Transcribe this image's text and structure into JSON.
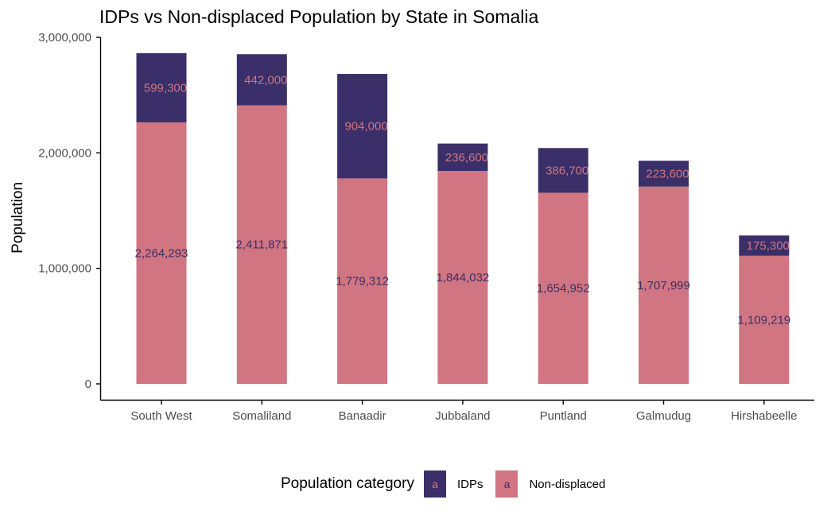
{
  "colors": {
    "idp": "#3a2f68",
    "nondisplaced": "#d07581",
    "axis": "#000000",
    "tick_text": "#4d4d4d"
  },
  "chart_data": {
    "type": "bar",
    "stacked": true,
    "title": "IDPs vs Non-displaced Population by State in Somalia",
    "xlabel": "",
    "ylabel": "Population",
    "ylim": [
      0,
      3000000
    ],
    "yticks": [
      0,
      1000000,
      2000000,
      3000000
    ],
    "ytick_labels": [
      "0",
      "1,000,000",
      "2,000,000",
      "3,000,000"
    ],
    "categories": [
      "South West",
      "Somaliland",
      "Banaadir",
      "Jubbaland",
      "Puntland",
      "Galmudug",
      "Hirshabeelle"
    ],
    "series": [
      {
        "name": "Non-displaced",
        "values": [
          2264293,
          2411871,
          1779312,
          1844032,
          1654952,
          1707999,
          1109219
        ],
        "labels": [
          "2,264,293",
          "2,411,871",
          "1,779,312",
          "1,844,032",
          "1,654,952",
          "1,707,999",
          "1,109,219"
        ]
      },
      {
        "name": "IDPs",
        "values": [
          599300,
          442000,
          904000,
          236600,
          386700,
          223600,
          175300
        ],
        "labels": [
          "599,300",
          "442,000",
          "904,000",
          "236,600",
          "386,700",
          "223,600",
          "175,300"
        ]
      }
    ],
    "legend": {
      "title": "Population category",
      "position": "bottom",
      "key_glyph": "a"
    },
    "grid": false
  }
}
